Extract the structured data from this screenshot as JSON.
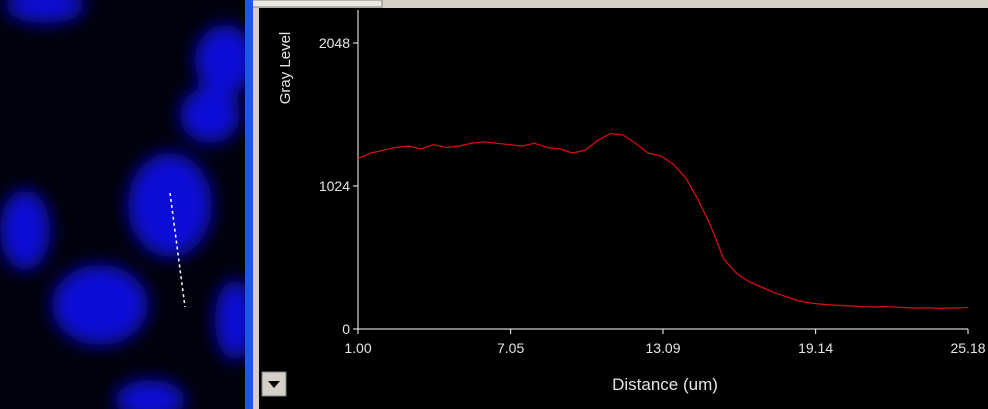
{
  "chart_data": {
    "type": "line",
    "x_label": "Distance (um)",
    "y_label": "Gray Level",
    "color": "#d01010",
    "x": [
      1,
      1.5,
      2,
      2.5,
      3,
      3.5,
      4,
      4.5,
      5,
      5.5,
      6,
      6.5,
      7,
      7.5,
      8,
      8.5,
      9,
      9.5,
      10,
      10.5,
      11,
      11.5,
      12,
      12.5,
      13,
      13.5,
      14,
      14.5,
      15,
      15.5,
      16,
      16.5,
      17,
      17.5,
      18,
      18.5,
      19,
      19.5,
      20,
      20.5,
      21,
      21.5,
      22,
      22.5,
      23,
      23.5,
      24,
      24.5,
      25,
      25.18
    ],
    "values": [
      1220,
      1260,
      1280,
      1300,
      1310,
      1290,
      1320,
      1300,
      1310,
      1330,
      1340,
      1330,
      1320,
      1310,
      1330,
      1300,
      1290,
      1260,
      1280,
      1350,
      1400,
      1390,
      1330,
      1260,
      1240,
      1180,
      1080,
      920,
      730,
      500,
      400,
      340,
      300,
      260,
      230,
      200,
      185,
      175,
      170,
      165,
      160,
      158,
      160,
      155,
      150,
      152,
      148,
      150,
      152,
      155
    ],
    "xlim": [
      1,
      25.18
    ],
    "xticks": [
      {
        "value": 1,
        "label": "1.00"
      },
      {
        "value": 7.05,
        "label": "7.05"
      },
      {
        "value": 13.09,
        "label": "13.09"
      },
      {
        "value": 19.14,
        "label": "19.14"
      },
      {
        "value": 25.18,
        "label": "25.18"
      }
    ],
    "ylim": [
      0,
      2048
    ],
    "yticks": [
      0,
      1024,
      2048
    ]
  }
}
